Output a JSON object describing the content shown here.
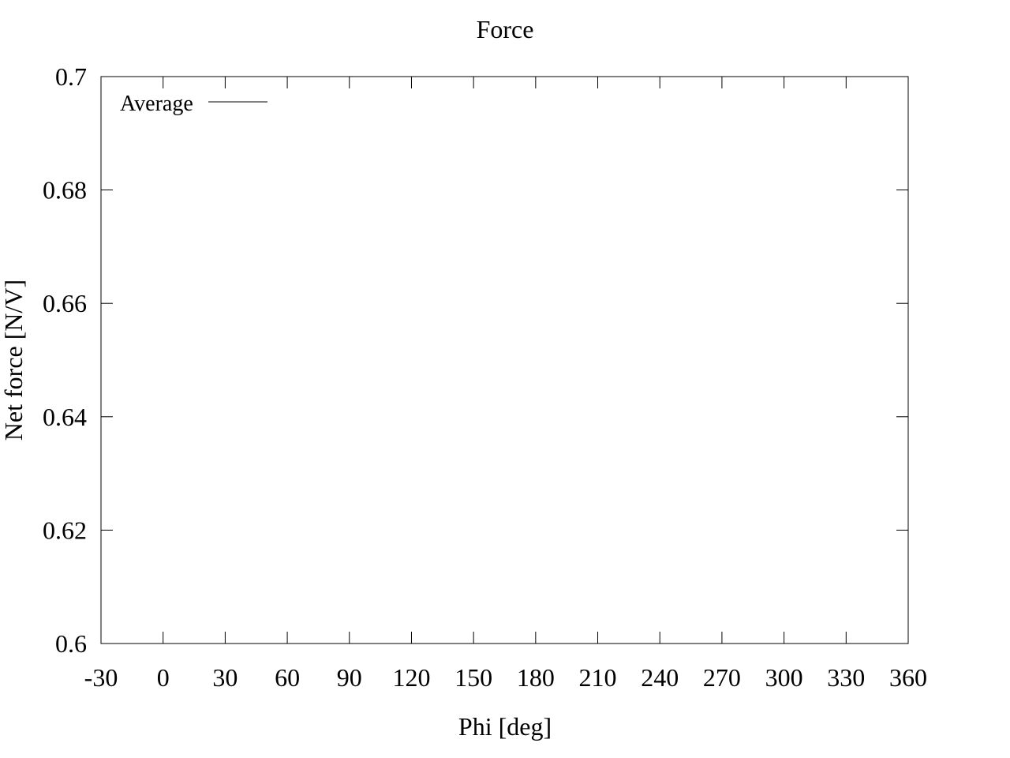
{
  "chart_data": {
    "type": "line",
    "title": "Force",
    "xlabel": "Phi [deg]",
    "ylabel": "Net force [N/V]",
    "xlim": [
      -30,
      360
    ],
    "ylim": [
      0.6,
      0.7
    ],
    "x_ticks": [
      "-30",
      "0",
      "30",
      "60",
      "90",
      "120",
      "150",
      "180",
      "210",
      "240",
      "270",
      "300",
      "330",
      "360"
    ],
    "y_ticks": [
      "0.6",
      "0.62",
      "0.64",
      "0.66",
      "0.68",
      "0.7"
    ],
    "grid": false,
    "legend_position": "top-left",
    "series": [
      {
        "name": "Average",
        "x": [],
        "y": [],
        "color": "#000000"
      }
    ]
  }
}
